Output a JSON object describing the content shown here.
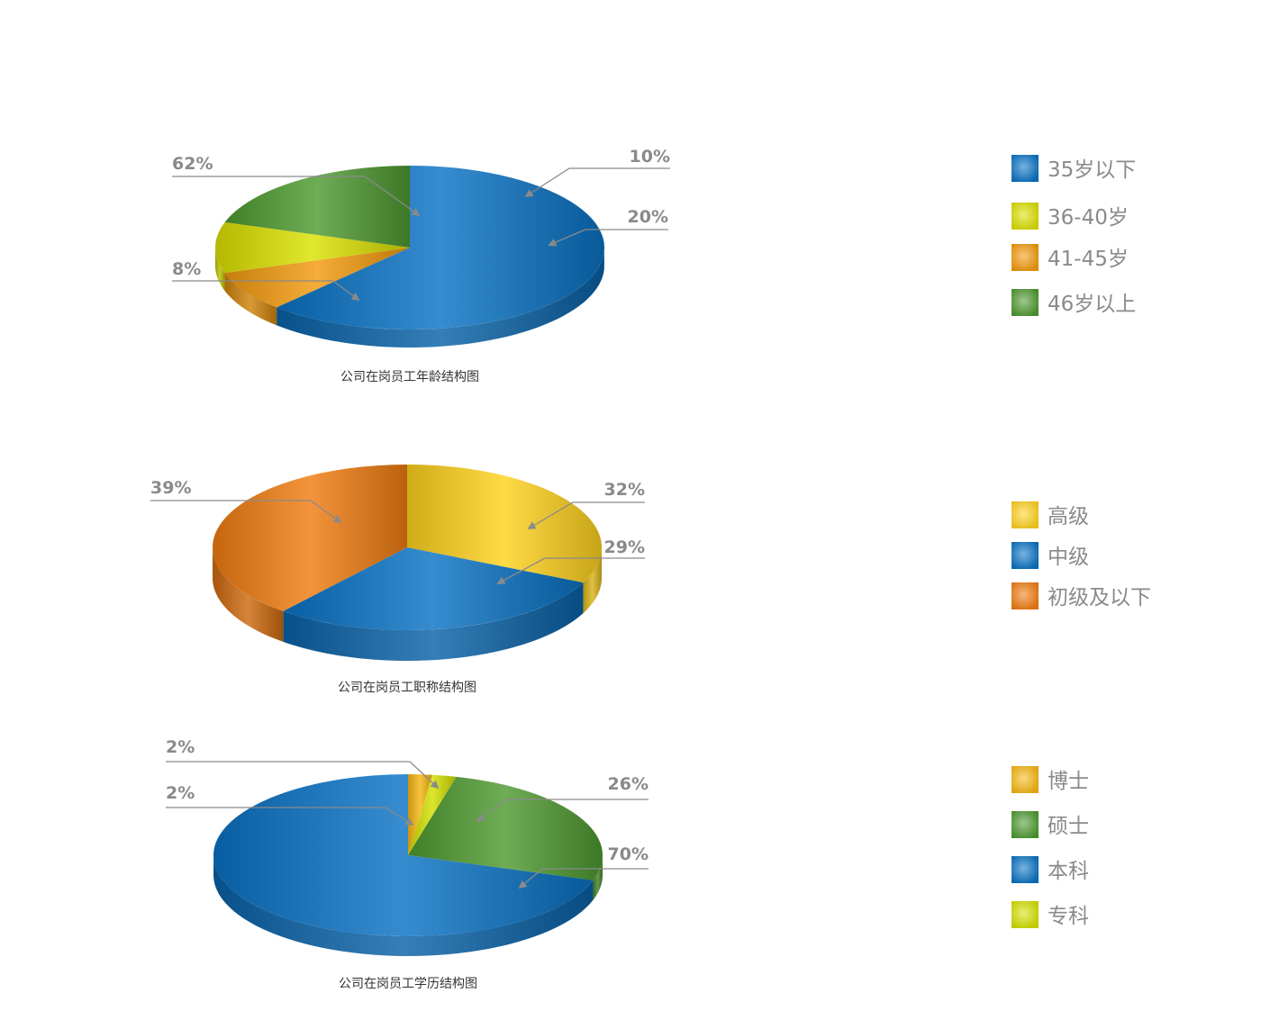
{
  "chart_data": [
    {
      "type": "pie",
      "title": "公司在岗员工年龄结构图",
      "slices": [
        {
          "name": "35岁以下",
          "value": 62,
          "label": "62%",
          "color": "#0a73c4"
        },
        {
          "name": "41-45岁",
          "value": 8,
          "label": "8%",
          "color": "#f39a0c"
        },
        {
          "name": "36-40岁",
          "value": 10,
          "label": "10%",
          "color": "#dbe000"
        },
        {
          "name": "46岁以上",
          "value": 20,
          "label": "20%",
          "color": "#4e9a31"
        }
      ],
      "legend": [
        "35岁以下",
        "36-40岁",
        "41-45岁",
        "46岁以上"
      ],
      "legend_position": "right"
    },
    {
      "type": "pie",
      "title": "公司在岗员工职称结构图",
      "slices": [
        {
          "name": "高级",
          "value": 32,
          "label": "32%",
          "color": "#ffd21f"
        },
        {
          "name": "中级",
          "value": 29,
          "label": "29%",
          "color": "#0a73c4"
        },
        {
          "name": "初级及以下",
          "value": 39,
          "label": "39%",
          "color": "#f07c11"
        }
      ],
      "legend": [
        "高级",
        "中级",
        "初级及以下"
      ],
      "legend_position": "right"
    },
    {
      "type": "pie",
      "title": "公司在岗员工学历结构图",
      "slices": [
        {
          "name": "博士",
          "value": 2,
          "label": "2%",
          "color": "#f7b712"
        },
        {
          "name": "专科",
          "value": 2,
          "label": "2%",
          "color": "#d4e000"
        },
        {
          "name": "硕士",
          "value": 26,
          "label": "26%",
          "color": "#4e9a31"
        },
        {
          "name": "本科",
          "value": 70,
          "label": "70%",
          "color": "#0a73c4"
        }
      ],
      "legend": [
        "博士",
        "硕士",
        "本科",
        "专科"
      ],
      "legend_position": "right"
    }
  ]
}
